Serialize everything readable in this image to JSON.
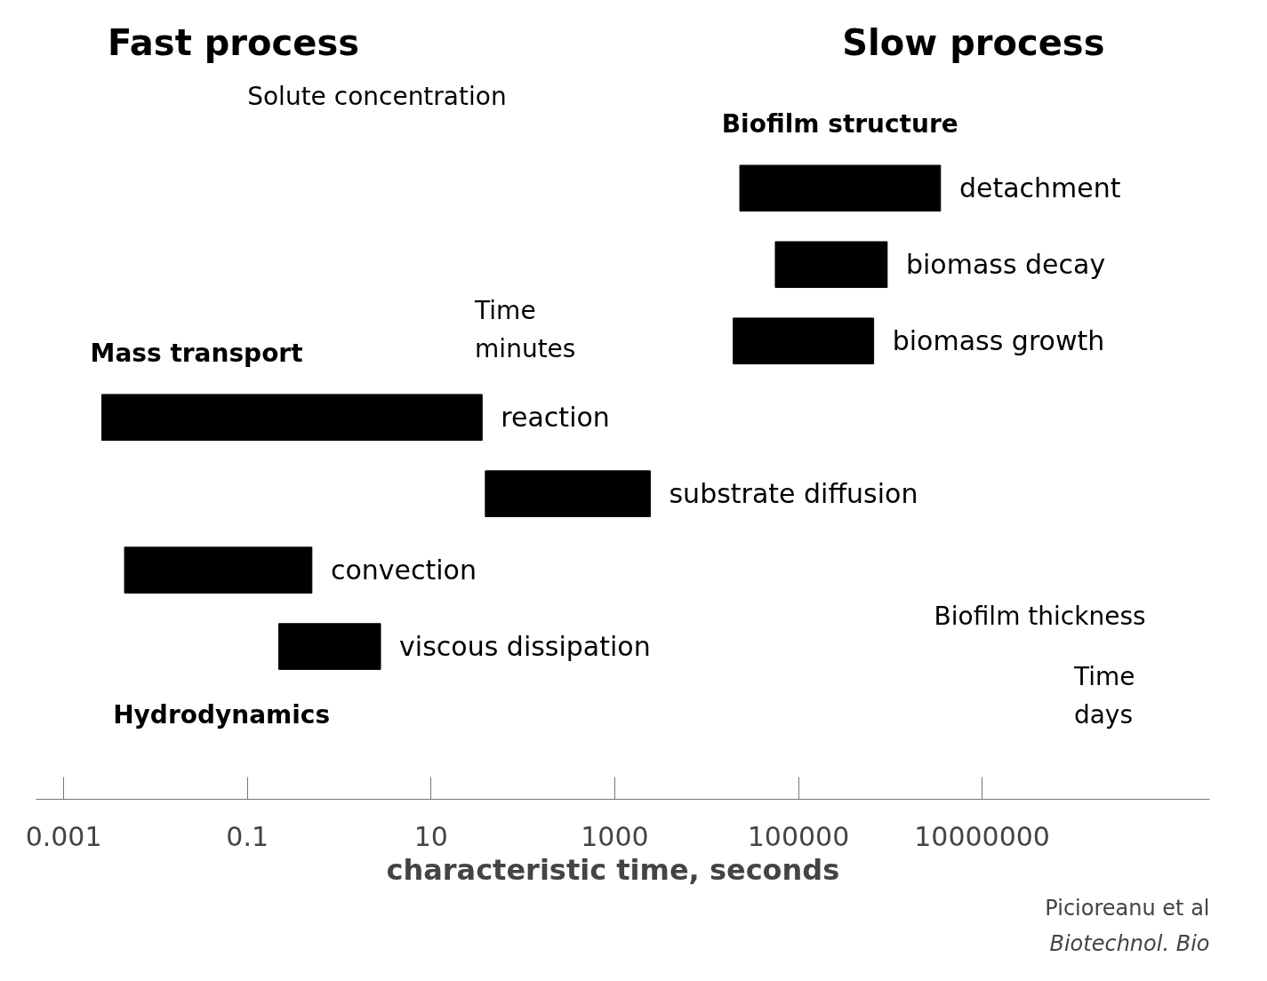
{
  "chart_data": {
    "type": "bar",
    "orientation": "horizontal",
    "xlabel": "characteristic time,   seconds",
    "categories": [
      "detachment",
      "biomass decay",
      "biomass growth",
      "reaction",
      "substrate diffusion",
      "convection",
      "viscous dissipation"
    ],
    "base": [
      23000,
      56000,
      19500,
      0.0026,
      39,
      0.0046,
      0.22
    ],
    "values": [
      3500000,
      870000,
      640000,
      36,
      2400,
      0.5,
      2.6
    ],
    "color": "#000000",
    "log": "x",
    "xlim": [
      0.0005,
      3000000000
    ],
    "xticks": [
      0.001,
      0.1,
      10,
      1000,
      100000,
      10000000
    ],
    "grid": false,
    "tick_labels": "x",
    "annotations": [
      "Fast process",
      "Slow process",
      "Biofilm structure",
      "Mass transport",
      "Hydrodynamics",
      "Solute concentration",
      "Time",
      "minutes",
      "Biofilm thickness",
      "Time",
      "days",
      "Picioreanu et al",
      "Biotechnol. Bio"
    ]
  }
}
